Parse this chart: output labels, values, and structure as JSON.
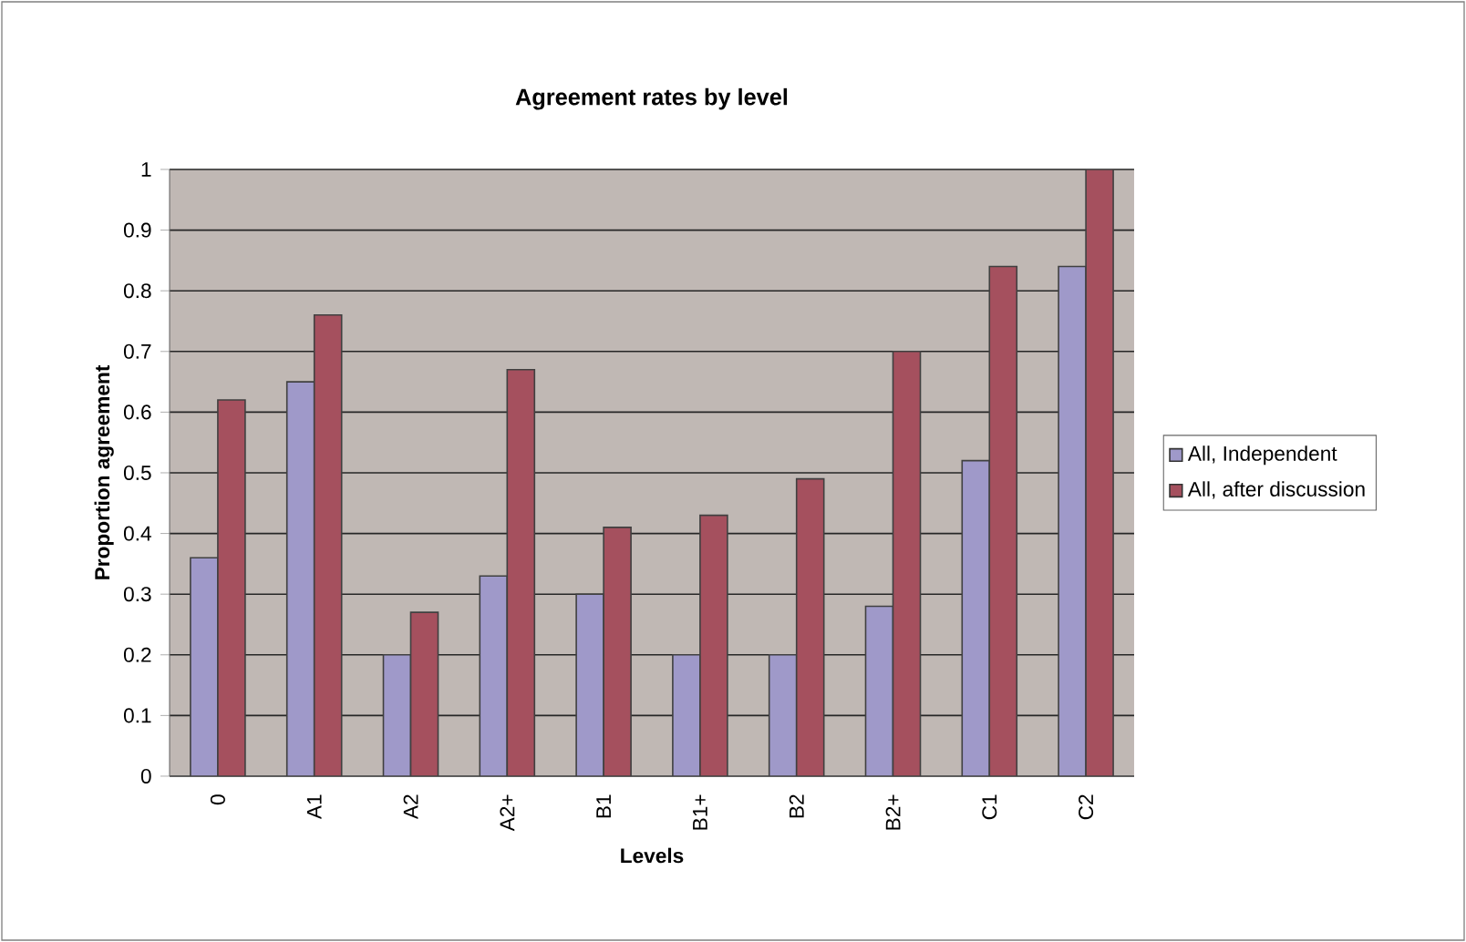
{
  "chart_data": {
    "type": "bar",
    "title": "Agreement rates by level",
    "xlabel": "Levels",
    "ylabel": "Proportion agreement",
    "categories": [
      "0",
      "A1",
      "A2",
      "A2+",
      "B1",
      "B1+",
      "B2",
      "B2+",
      "C1",
      "C2"
    ],
    "series": [
      {
        "name": "All, Independent",
        "color": "#9f99c9",
        "values": [
          0.36,
          0.65,
          0.2,
          0.33,
          0.3,
          0.2,
          0.2,
          0.28,
          0.52,
          0.84
        ]
      },
      {
        "name": "All, after discussion",
        "color": "#a5505e",
        "values": [
          0.62,
          0.76,
          0.27,
          0.67,
          0.41,
          0.43,
          0.49,
          0.7,
          0.84,
          1.0
        ]
      }
    ],
    "ylim": [
      0,
      1
    ],
    "yticks": [
      0,
      0.1,
      0.2,
      0.3,
      0.4,
      0.5,
      0.6,
      0.7,
      0.8,
      0.9,
      1
    ],
    "grid": "y",
    "legend": "right"
  }
}
